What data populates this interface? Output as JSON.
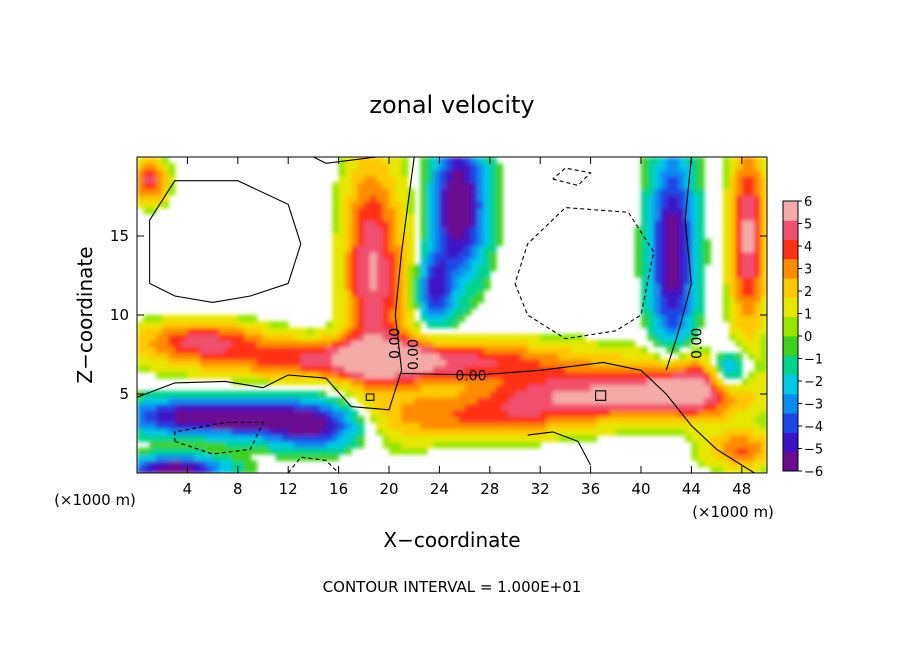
{
  "chart_data": {
    "type": "heatmap",
    "title": "zonal velocity",
    "xlabel": "X−coordinate",
    "ylabel": "Z−coordinate",
    "x_unit_left": "(×1000 m)",
    "x_unit_right": "(×1000 m)",
    "xlim": [
      0,
      50
    ],
    "ylim": [
      0,
      20
    ],
    "x_ticks": [
      4,
      8,
      12,
      16,
      20,
      24,
      28,
      32,
      36,
      40,
      44,
      48
    ],
    "y_ticks": [
      5,
      10,
      15
    ],
    "footer": "CONTOUR INTERVAL = 1.000E+01",
    "colorbar": {
      "ticks": [
        "6",
        "5",
        "4",
        "3",
        "2",
        "1",
        "0",
        "−1",
        "−2",
        "−3",
        "−4",
        "−5",
        "−6"
      ],
      "range": [
        -6,
        6
      ]
    },
    "contour_labels": [
      "0.00",
      "0.00",
      "0.00",
      "0.00"
    ],
    "grid": false
  },
  "colors": {
    "palette": [
      "#6a0d91",
      "#3c14c8",
      "#1e46e6",
      "#0a8cf0",
      "#00c8e6",
      "#00d28c",
      "#3cd21e",
      "#96e600",
      "#e6e600",
      "#ffc800",
      "#ff8c00",
      "#ff3214",
      "#f0506e",
      "#f5aaaa"
    ]
  }
}
